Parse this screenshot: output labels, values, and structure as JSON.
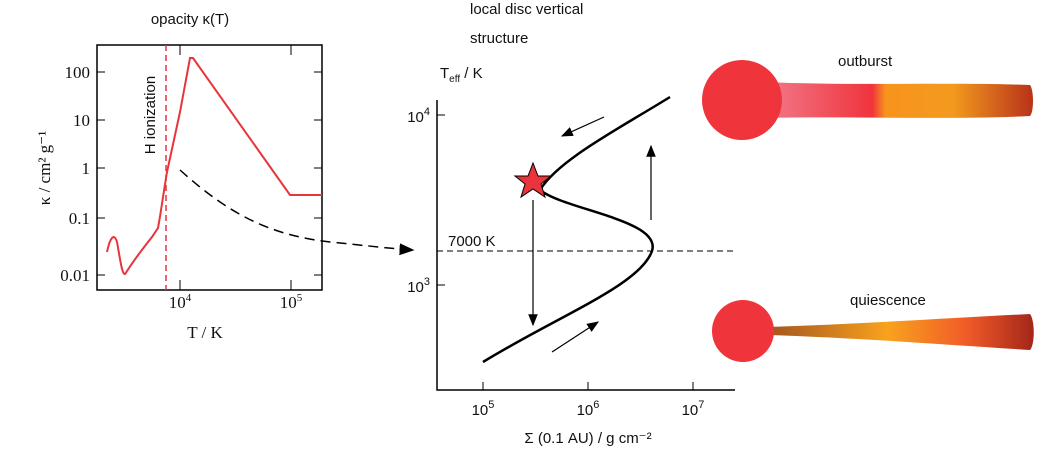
{
  "left_panel": {
    "title": "opacity κ(T)",
    "y_label": "κ / cm² g⁻¹",
    "x_label": "T / K",
    "annotation": "H ionization",
    "y_ticks": [
      "100",
      "10",
      "1",
      "0.1",
      "0.01"
    ],
    "x_ticks": [
      {
        "base": "10",
        "exp": "4"
      },
      {
        "base": "10",
        "exp": "5"
      }
    ]
  },
  "middle_panel": {
    "title_lines": [
      "local disc vertical",
      "structure"
    ],
    "y_label": {
      "base": "T",
      "sub": "eff",
      "rest": " / K"
    },
    "x_label": "Σ (0.1 AU) / g cm⁻²",
    "annotation": "7000 K",
    "y_ticks": [
      {
        "base": "10",
        "exp": "4"
      },
      {
        "base": "10",
        "exp": "3"
      }
    ],
    "x_ticks": [
      {
        "base": "10",
        "exp": "5"
      },
      {
        "base": "10",
        "exp": "6"
      },
      {
        "base": "10",
        "exp": "7"
      }
    ]
  },
  "right_panel": {
    "states": [
      "outburst",
      "quiescence"
    ]
  }
}
